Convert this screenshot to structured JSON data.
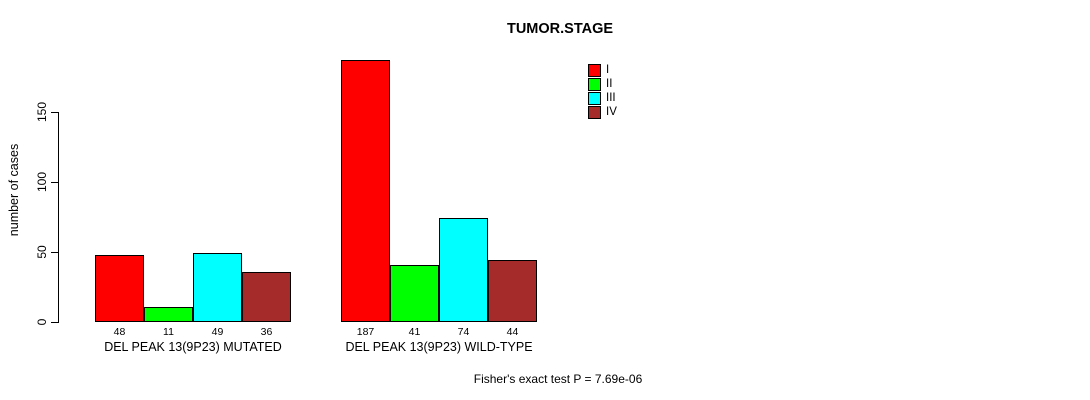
{
  "chart_data": {
    "type": "bar",
    "title": "TUMOR.STAGE",
    "xlabel": "",
    "ylabel": "number of cases",
    "ylim": [
      0,
      190
    ],
    "yticks": [
      0,
      50,
      100,
      150
    ],
    "grid": false,
    "legend_position": "top-right",
    "series_labels": [
      "I",
      "II",
      "III",
      "IV"
    ],
    "series_colors": [
      "#FF0000",
      "#00FF00",
      "#00FFFF",
      "#A52A2A"
    ],
    "categories": [
      "DEL PEAK 13(9P23) MUTATED",
      "DEL PEAK 13(9P23) WILD-TYPE"
    ],
    "groups": [
      {
        "label": "DEL PEAK 13(9P23) MUTATED",
        "values": [
          48,
          11,
          49,
          36
        ]
      },
      {
        "label": "DEL PEAK 13(9P23) WILD-TYPE",
        "values": [
          187,
          41,
          74,
          44
        ]
      }
    ],
    "bar_value_labels": [
      [
        48,
        11,
        49,
        36
      ],
      [
        187,
        41,
        74,
        44
      ]
    ],
    "annotation": "Fisher's exact test P = 7.69e-06"
  }
}
